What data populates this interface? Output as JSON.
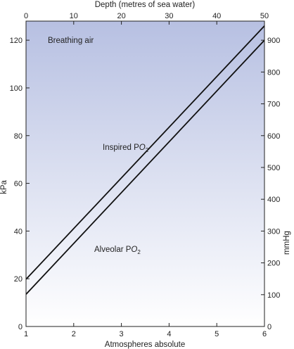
{
  "chart_data": {
    "type": "line",
    "title": "",
    "xlabel": "Atmospheres absolute",
    "ylabel": "kPa",
    "top_axis_label": "Depth (metres of sea water)",
    "right_axis_label": "mmHg",
    "xlim": [
      1,
      6
    ],
    "ylim": [
      0,
      128
    ],
    "x_ticks": [
      "1",
      "2",
      "3",
      "4",
      "5",
      "6"
    ],
    "y_ticks": [
      "0",
      "20",
      "40",
      "60",
      "80",
      "100",
      "120"
    ],
    "top_ticks": [
      "0",
      "10",
      "20",
      "30",
      "40",
      "50"
    ],
    "right_ticks": [
      "0",
      "100",
      "200",
      "300",
      "400",
      "500",
      "600",
      "700",
      "800",
      "900"
    ],
    "series": [
      {
        "name": "Inspired PO2",
        "x": [
          1,
          6
        ],
        "y": [
          19.8,
          126
        ]
      },
      {
        "name": "Alveolar PO2",
        "x": [
          1,
          6
        ],
        "y": [
          13.5,
          120
        ]
      }
    ],
    "annotations": {
      "region_label": "Breathing air",
      "inspired_label": "Inspired P",
      "inspired_sub": "O",
      "inspired_num": "2",
      "alveolar_label": "Alveolar P",
      "alveolar_sub": "O",
      "alveolar_num": "2"
    },
    "colors": {
      "gradient_top": "#b7c0e2",
      "gradient_bottom": "#ffffff",
      "line": "#111111"
    },
    "grid": false
  }
}
